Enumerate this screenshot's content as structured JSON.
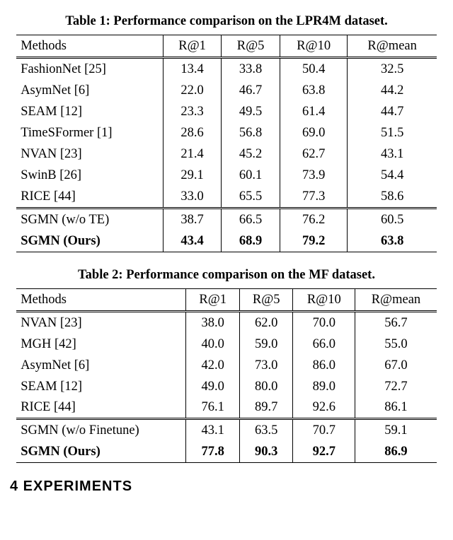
{
  "table1": {
    "caption": "Table 1: Performance comparison on the LPR4M dataset.",
    "columns": [
      "Methods",
      "R@1",
      "R@5",
      "R@10",
      "R@mean"
    ],
    "rows_main": [
      [
        "FashionNet [25]",
        "13.4",
        "33.8",
        "50.4",
        "32.5"
      ],
      [
        "AsymNet [6]",
        "22.0",
        "46.7",
        "63.8",
        "44.2"
      ],
      [
        "SEAM [12]",
        "23.3",
        "49.5",
        "61.4",
        "44.7"
      ],
      [
        "TimeSFormer [1]",
        "28.6",
        "56.8",
        "69.0",
        "51.5"
      ],
      [
        "NVAN [23]",
        "21.4",
        "45.2",
        "62.7",
        "43.1"
      ],
      [
        "SwinB [26]",
        "29.1",
        "60.1",
        "73.9",
        "54.4"
      ],
      [
        "RICE [44]",
        "33.0",
        "65.5",
        "77.3",
        "58.6"
      ]
    ],
    "rows_ablate": [
      [
        "SGMN (w/o TE)",
        "38.7",
        "66.5",
        "76.2",
        "60.5"
      ]
    ],
    "rows_ours": [
      [
        "SGMN (Ours)",
        "43.4",
        "68.9",
        "79.2",
        "63.8"
      ]
    ]
  },
  "table2": {
    "caption": "Table 2: Performance comparison on the MF dataset.",
    "columns": [
      "Methods",
      "R@1",
      "R@5",
      "R@10",
      "R@mean"
    ],
    "rows_main": [
      [
        "NVAN [23]",
        "38.0",
        "62.0",
        "70.0",
        "56.7"
      ],
      [
        "MGH [42]",
        "40.0",
        "59.0",
        "66.0",
        "55.0"
      ],
      [
        "AsymNet [6]",
        "42.0",
        "73.0",
        "86.0",
        "67.0"
      ],
      [
        "SEAM [12]",
        "49.0",
        "80.0",
        "89.0",
        "72.7"
      ],
      [
        "RICE [44]",
        "76.1",
        "89.7",
        "92.6",
        "86.1"
      ]
    ],
    "rows_ablate": [
      [
        "SGMN (w/o Finetune)",
        "43.1",
        "63.5",
        "70.7",
        "59.1"
      ]
    ],
    "rows_ours": [
      [
        "SGMN (Ours)",
        "77.8",
        "90.3",
        "92.7",
        "86.9"
      ]
    ]
  },
  "section_heading": "4    EXPERIMENTS"
}
